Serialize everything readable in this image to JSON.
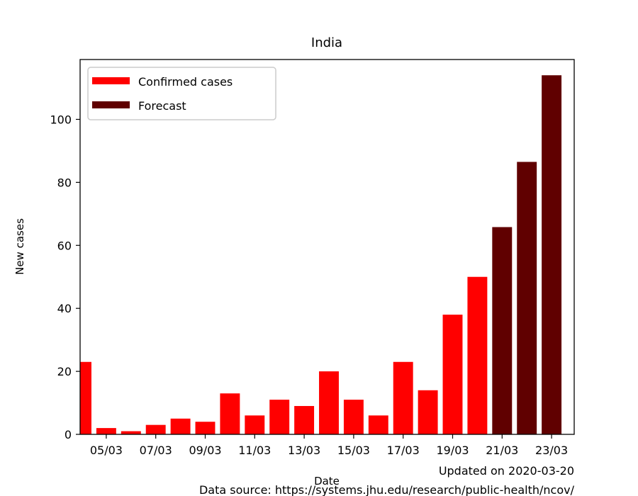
{
  "chart_data": {
    "type": "bar",
    "title": "India",
    "xlabel": "Date",
    "ylabel": "New cases",
    "xlim": [
      "2020-03-04",
      "2020-03-23"
    ],
    "ylim": [
      0,
      119
    ],
    "x_tick_labels": [
      "05/03",
      "07/03",
      "09/03",
      "11/03",
      "13/03",
      "15/03",
      "17/03",
      "19/03",
      "21/03",
      "23/03"
    ],
    "y_tick_labels": [
      "0",
      "20",
      "40",
      "60",
      "80",
      "100"
    ],
    "legend_position": "top-left",
    "grid": false,
    "series": [
      {
        "name": "Confirmed cases",
        "color": "#ff0000",
        "points": [
          {
            "date": "2020-03-04",
            "value": 23
          },
          {
            "date": "2020-03-05",
            "value": 2
          },
          {
            "date": "2020-03-06",
            "value": 1
          },
          {
            "date": "2020-03-07",
            "value": 3
          },
          {
            "date": "2020-03-08",
            "value": 5
          },
          {
            "date": "2020-03-09",
            "value": 4
          },
          {
            "date": "2020-03-10",
            "value": 13
          },
          {
            "date": "2020-03-11",
            "value": 6
          },
          {
            "date": "2020-03-12",
            "value": 11
          },
          {
            "date": "2020-03-13",
            "value": 9
          },
          {
            "date": "2020-03-14",
            "value": 20
          },
          {
            "date": "2020-03-15",
            "value": 11
          },
          {
            "date": "2020-03-16",
            "value": 6
          },
          {
            "date": "2020-03-17",
            "value": 23
          },
          {
            "date": "2020-03-18",
            "value": 14
          },
          {
            "date": "2020-03-19",
            "value": 38
          },
          {
            "date": "2020-03-20",
            "value": 50
          }
        ]
      },
      {
        "name": "Forecast",
        "color": "#600000",
        "points": [
          {
            "date": "2020-03-21",
            "value": 65.8
          },
          {
            "date": "2020-03-22",
            "value": 86.5
          },
          {
            "date": "2020-03-23",
            "value": 114
          }
        ]
      }
    ]
  },
  "footer": {
    "updated": "Updated on 2020-03-20",
    "source": "Data source: https://systems.jhu.edu/research/public-health/ncov/"
  }
}
